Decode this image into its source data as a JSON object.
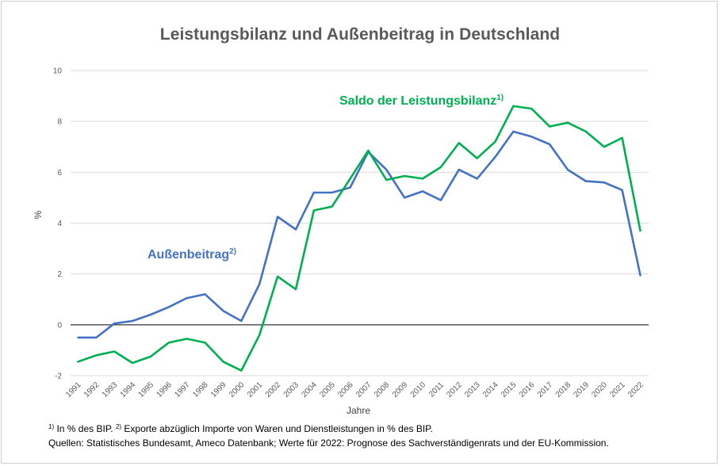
{
  "chart_data": {
    "type": "line",
    "title": "Leistungsbilanz und Außenbeitrag in Deutschland",
    "xlabel": "Jahre",
    "ylabel": "%",
    "ylim": [
      -2,
      10
    ],
    "yticks": [
      -2,
      0,
      2,
      4,
      6,
      8,
      10
    ],
    "grid": true,
    "categories": [
      "1991",
      "1992",
      "1993",
      "1994",
      "1995",
      "1996",
      "1997",
      "1998",
      "1999",
      "2000",
      "2001",
      "2002",
      "2003",
      "2004",
      "2005",
      "2006",
      "2007",
      "2008",
      "2009",
      "2010",
      "2011",
      "2012",
      "2013",
      "2014",
      "2015",
      "2016",
      "2017",
      "2018",
      "2019",
      "2020",
      "2021",
      "2022"
    ],
    "series": [
      {
        "name": "Außenbeitrag",
        "name_sup": "2)",
        "color": "#4472c4",
        "values": [
          -0.5,
          -0.5,
          0.05,
          0.15,
          0.4,
          0.7,
          1.05,
          1.2,
          0.55,
          0.15,
          1.6,
          4.25,
          3.75,
          5.2,
          5.2,
          5.4,
          6.8,
          6.1,
          5.0,
          5.25,
          4.9,
          6.1,
          5.75,
          6.6,
          7.6,
          7.4,
          7.1,
          6.1,
          5.65,
          5.6,
          5.3,
          1.95
        ]
      },
      {
        "name": "Saldo der Leistungsbilanz",
        "name_sup": "1)",
        "color": "#00b050",
        "values": [
          -1.45,
          -1.2,
          -1.05,
          -1.5,
          -1.25,
          -0.7,
          -0.55,
          -0.7,
          -1.45,
          -1.8,
          -0.4,
          1.9,
          1.4,
          4.5,
          4.65,
          5.75,
          6.85,
          5.7,
          5.85,
          5.75,
          6.2,
          7.15,
          6.55,
          7.2,
          8.6,
          8.5,
          7.8,
          7.95,
          7.6,
          7.0,
          7.35,
          3.7
        ]
      }
    ]
  },
  "footnotes": {
    "line1_sup1": "1)",
    "line1_text1": " In % des BIP. ",
    "line1_sup2": "2)",
    "line1_text2": " Exporte abzüglich Importe von Waren und Dienstleistungen in % des BIP.",
    "line2": "Quellen: Statistisches Bundesamt, Ameco Datenbank; Werte für 2022: Prognose des Sachverständigenrats und der EU-Kommission."
  }
}
